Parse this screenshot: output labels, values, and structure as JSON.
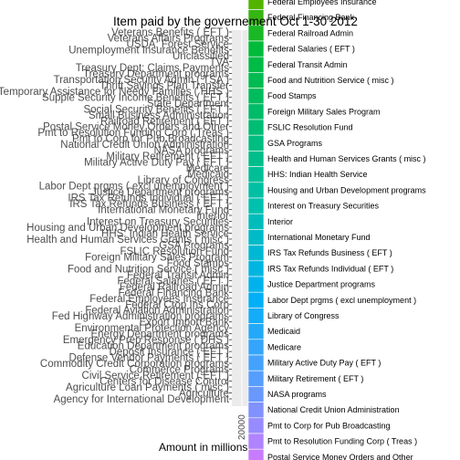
{
  "chart_data": {
    "type": "bar",
    "orientation": "horizontal",
    "title": "Item paid by the governement Oct 1-30 2012",
    "xlabel": "Amount in millions",
    "ylabel": "",
    "x_ticks": [
      "20000"
    ],
    "grid": true,
    "legend_position": "right",
    "color_scale": {
      "low": "#F8766D",
      "mid": "#00BA38",
      "high": "#619CFF",
      "top": "#C77CFF"
    },
    "categories": [
      "Agency for International Development",
      "Agriculture",
      "Agriculture Loan Payments ( misc )",
      "Centers for Disease Control",
      "Civil Service Retirement ( EFT )",
      "Commerce Programs",
      "Commodity Credit Corporation programs",
      "Defense Vendor Payments ( EFT )",
      "Deposit Insurance ( EFT )",
      "Education Department programs",
      "Emergency Prep Response ( DHS )",
      "Energy Department programs",
      "Environmental Protection Agency",
      "Export Import Bank",
      "Fed Highway Administration programs",
      "Federal Aviation Administration",
      "Federal Crop Ins Corp",
      "Federal Employees Insurance",
      "Federal Financing Bank",
      "Federal Railroad Admin",
      "Federal Salaries ( EFT )",
      "Federal Transit Admin",
      "Food and Nutrition Service ( misc )",
      "Food Stamps",
      "Foreign Military Sales Program",
      "FSLIC Resolution Fund",
      "GSA Programs",
      "Health and Human Services Grants ( misc )",
      "HHS: Indian Health Service",
      "Housing and Urban Development programs",
      "Interest on Treasury Securities",
      "Interior",
      "International Monetary Fund",
      "IRS Tax Refunds Business ( EFT )",
      "IRS Tax Refunds Individual ( EFT )",
      "Justice Department programs",
      "Labor Dept prgms ( excl unemployment )",
      "Library of Congress",
      "Medicaid",
      "Medicare",
      "Military Active Duty Pay ( EFT )",
      "Military Retirement ( EFT )",
      "NASA programs",
      "National Credit Union Administration",
      "Pmt to Corp for Pub Broadcasting",
      "Pmt to Resolution Funding Corp ( Treas )",
      "Postal Service Money Orders and Other",
      "Railroad Retirement ( EFT )",
      "Small Business Administration",
      "Social Security Benefits ( EFT )",
      "State Department",
      "Supple Security Income Benefits ( EFT )",
      "Temporary Assistance for Needy Families ( HHS )",
      "Thrift Savings Plan Transfer",
      "Transportation Security Admin ( TSA )",
      "Treasury Department programs",
      "Treasury Dept: Claims Payments",
      "TVA",
      "Unclassified",
      "Unemployment Insurance Benefits",
      "USDA: Forest Service",
      "Veterans Affairs Programs",
      "Veterans Benefits ( EFT )"
    ],
    "legend_entries": [
      "Federal Employees Insurance",
      "Federal Financing Bank",
      "Federal Railroad Admin",
      "Federal Salaries ( EFT )",
      "Federal Transit Admin",
      "Food and Nutrition Service ( misc )",
      "Food Stamps",
      "Foreign Military Sales Program",
      "FSLIC Resolution Fund",
      "GSA Programs",
      "Health and Human Services Grants ( misc )",
      "HHS: Indian Health Service",
      "Housing and Urban Development programs",
      "Interest on Treasury Securities",
      "Interior",
      "International Monetary Fund",
      "IRS Tax Refunds Business ( EFT )",
      "IRS Tax Refunds Individual ( EFT )",
      "Justice Department programs",
      "Labor Dept prgms ( excl unemployment )",
      "Library of Congress",
      "Medicaid",
      "Medicare",
      "Military Active Duty Pay ( EFT )",
      "Military Retirement ( EFT )",
      "NASA programs",
      "National Credit Union Administration",
      "Pmt to Corp for Pub Broadcasting",
      "Pmt to Resolution Funding Corp ( Treas )",
      "Postal Service Money Orders and Other"
    ]
  }
}
